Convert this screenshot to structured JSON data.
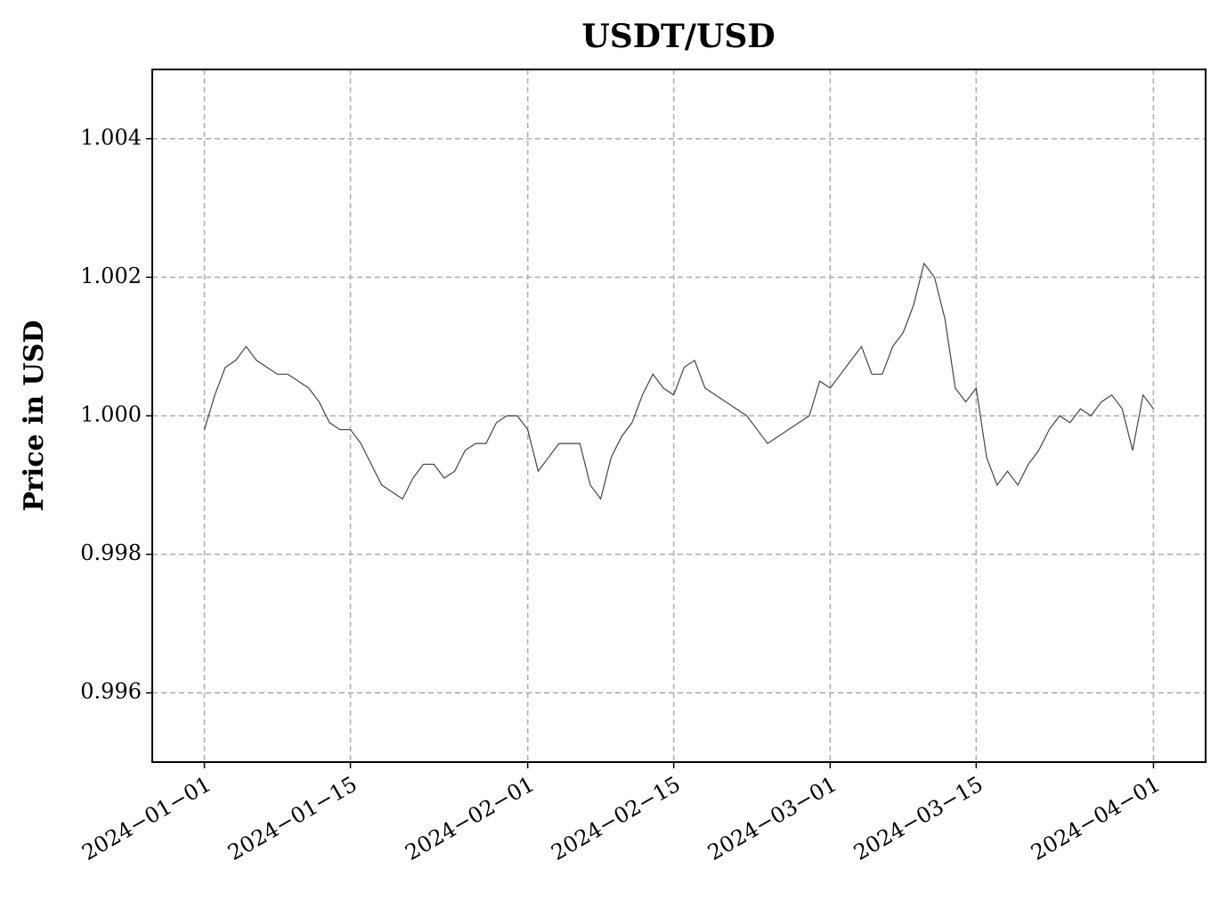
{
  "chart_data": {
    "type": "line",
    "title": "USDT/USD",
    "y_label": "Price in USD",
    "x": [
      "2024-01-01",
      "2024-01-02",
      "2024-01-03",
      "2024-01-04",
      "2024-01-05",
      "2024-01-06",
      "2024-01-07",
      "2024-01-08",
      "2024-01-09",
      "2024-01-10",
      "2024-01-11",
      "2024-01-12",
      "2024-01-13",
      "2024-01-14",
      "2024-01-15",
      "2024-01-16",
      "2024-01-17",
      "2024-01-18",
      "2024-01-19",
      "2024-01-20",
      "2024-01-21",
      "2024-01-22",
      "2024-01-23",
      "2024-01-24",
      "2024-01-25",
      "2024-01-26",
      "2024-01-27",
      "2024-01-28",
      "2024-01-29",
      "2024-01-30",
      "2024-01-31",
      "2024-02-01",
      "2024-02-02",
      "2024-02-03",
      "2024-02-04",
      "2024-02-05",
      "2024-02-06",
      "2024-02-07",
      "2024-02-08",
      "2024-02-09",
      "2024-02-10",
      "2024-02-11",
      "2024-02-12",
      "2024-02-13",
      "2024-02-14",
      "2024-02-15",
      "2024-02-16",
      "2024-02-17",
      "2024-02-18",
      "2024-02-19",
      "2024-02-20",
      "2024-02-21",
      "2024-02-22",
      "2024-02-23",
      "2024-02-24",
      "2024-02-25",
      "2024-02-26",
      "2024-02-27",
      "2024-02-28",
      "2024-02-29",
      "2024-03-01",
      "2024-03-02",
      "2024-03-03",
      "2024-03-04",
      "2024-03-05",
      "2024-03-06",
      "2024-03-07",
      "2024-03-08",
      "2024-03-09",
      "2024-03-10",
      "2024-03-11",
      "2024-03-12",
      "2024-03-13",
      "2024-03-14",
      "2024-03-15",
      "2024-03-16",
      "2024-03-17",
      "2024-03-18",
      "2024-03-19",
      "2024-03-20",
      "2024-03-21",
      "2024-03-22",
      "2024-03-23",
      "2024-03-24",
      "2024-03-25",
      "2024-03-26",
      "2024-03-27",
      "2024-03-28",
      "2024-03-29",
      "2024-03-30",
      "2024-03-31",
      "2024-04-01"
    ],
    "series": [
      {
        "name": "USDT/USD",
        "color": "#444444",
        "values": [
          0.9998,
          1.0003,
          1.0007,
          1.0008,
          1.001,
          1.0008,
          1.0007,
          1.0006,
          1.0006,
          1.0005,
          1.0004,
          1.0002,
          0.9999,
          0.9998,
          0.9998,
          0.9996,
          0.9993,
          0.999,
          0.9989,
          0.9988,
          0.9991,
          0.9993,
          0.9993,
          0.9991,
          0.9992,
          0.9995,
          0.9996,
          0.9996,
          0.9999,
          1.0,
          1.0,
          0.9998,
          0.9992,
          0.9994,
          0.9996,
          0.9996,
          0.9996,
          0.999,
          0.9988,
          0.9994,
          0.9997,
          0.9999,
          1.0003,
          1.0006,
          1.0004,
          1.0003,
          1.0007,
          1.0008,
          1.0004,
          1.0003,
          1.0002,
          1.0001,
          1.0,
          0.9998,
          0.9996,
          0.9997,
          0.9998,
          0.9999,
          1.0,
          1.0005,
          1.0004,
          1.0006,
          1.0008,
          1.001,
          1.0006,
          1.0006,
          1.001,
          1.0012,
          1.0016,
          1.0022,
          1.002,
          1.0014,
          1.0004,
          1.0002,
          1.0004,
          0.9994,
          0.999,
          0.9992,
          0.999,
          0.9993,
          0.9995,
          0.9998,
          1.0,
          0.9999,
          1.0001,
          1.0,
          1.0002,
          1.0003,
          1.0001,
          0.9995,
          1.0003,
          1.0001
        ]
      }
    ],
    "xlim": [
      "2023-12-27",
      "2024-04-06"
    ],
    "xticks": [
      {
        "value": "2024-01-01",
        "label": "2024−01−01"
      },
      {
        "value": "2024-01-15",
        "label": "2024−01−15"
      },
      {
        "value": "2024-02-01",
        "label": "2024−02−01"
      },
      {
        "value": "2024-02-15",
        "label": "2024−02−15"
      },
      {
        "value": "2024-03-01",
        "label": "2024−03−01"
      },
      {
        "value": "2024-03-15",
        "label": "2024−03−15"
      },
      {
        "value": "2024-04-01",
        "label": "2024−04−01"
      }
    ],
    "ylim": [
      0.995,
      1.005
    ],
    "yticks": [
      {
        "value": 0.996,
        "label": "0.996"
      },
      {
        "value": 0.998,
        "label": "0.998"
      },
      {
        "value": 1.0,
        "label": "1.000"
      },
      {
        "value": 1.002,
        "label": "1.002"
      },
      {
        "value": 1.004,
        "label": "1.004"
      }
    ],
    "grid": true
  }
}
